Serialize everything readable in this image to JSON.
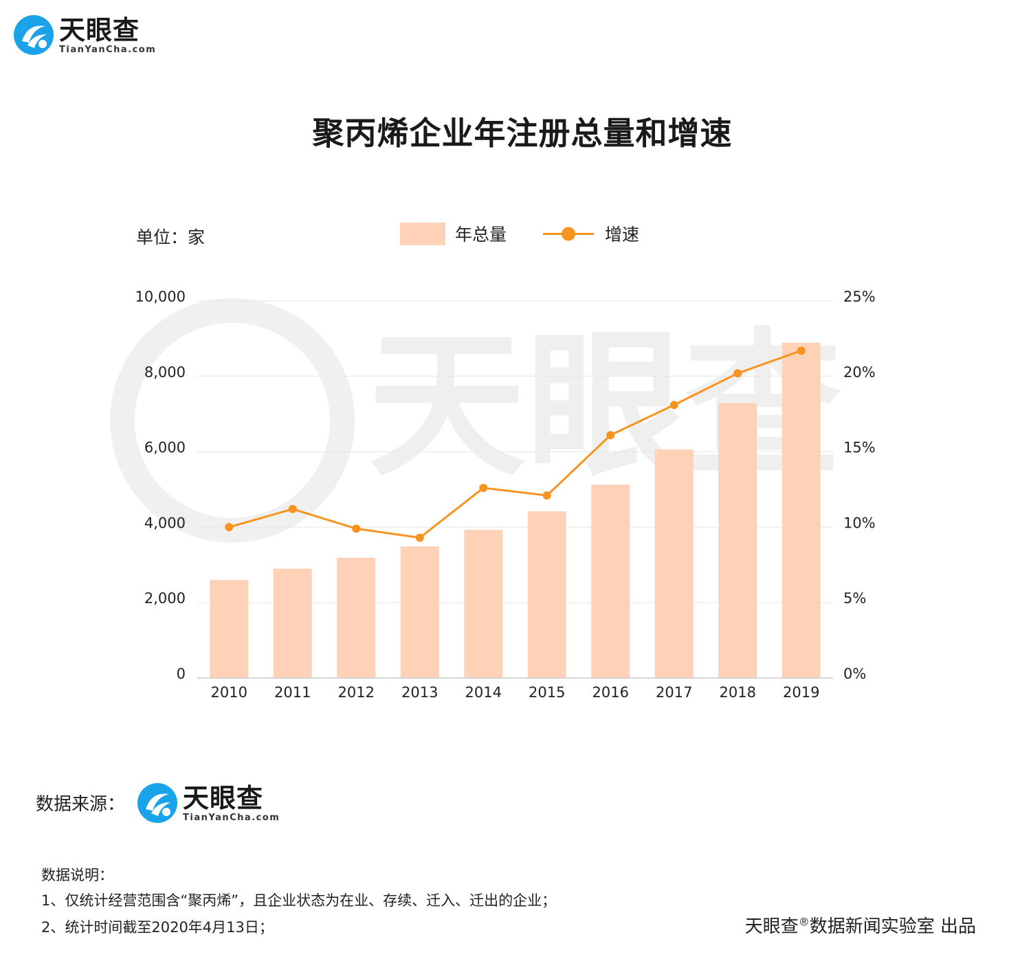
{
  "brand": {
    "name": "天眼查",
    "domain": "TianYanCha.com"
  },
  "title": "聚丙烯企业年注册总量和增速",
  "unit": "单位：家",
  "legend": {
    "bar": "年总量",
    "line": "增速"
  },
  "chart_data": {
    "type": "bar",
    "title": "聚丙烯企业年注册总量和增速",
    "categories": [
      "2010",
      "2011",
      "2012",
      "2013",
      "2014",
      "2015",
      "2016",
      "2017",
      "2018",
      "2019"
    ],
    "series": [
      {
        "name": "年总量",
        "type": "bar",
        "axis": "left",
        "values": [
          2600,
          2900,
          3190,
          3490,
          3930,
          4420,
          5130,
          6060,
          7290,
          8890
        ]
      },
      {
        "name": "增速",
        "type": "line",
        "axis": "right",
        "values": [
          10.0,
          11.2,
          9.9,
          9.3,
          12.6,
          12.1,
          16.1,
          18.1,
          20.2,
          21.7
        ]
      }
    ],
    "y_left": {
      "range": [
        0,
        10000
      ],
      "ticks": [
        "0",
        "2,000",
        "4,000",
        "6,000",
        "8,000",
        "10,000"
      ]
    },
    "y_right": {
      "range": [
        0,
        25
      ],
      "ticks": [
        "0%",
        "5%",
        "10%",
        "15%",
        "20%",
        "25%"
      ]
    },
    "grid": true,
    "legend_position": "top-center",
    "colors": {
      "bar": "#ffd2b8",
      "line": "#f7931e",
      "grid": "#e6e6e6",
      "axis": "#cccccc"
    }
  },
  "source": {
    "label": "数据来源："
  },
  "notes": {
    "title": "数据说明：",
    "items": [
      "1、仅统计经营范围含“聚丙烯”，且企业状态为在业、存续、迁入、迁出的企业；",
      "2、统计时间截至2020年4月13日；"
    ]
  },
  "credit": {
    "brand": "天眼查",
    "mark": "®",
    "text": "数据新闻实验室 出品"
  }
}
